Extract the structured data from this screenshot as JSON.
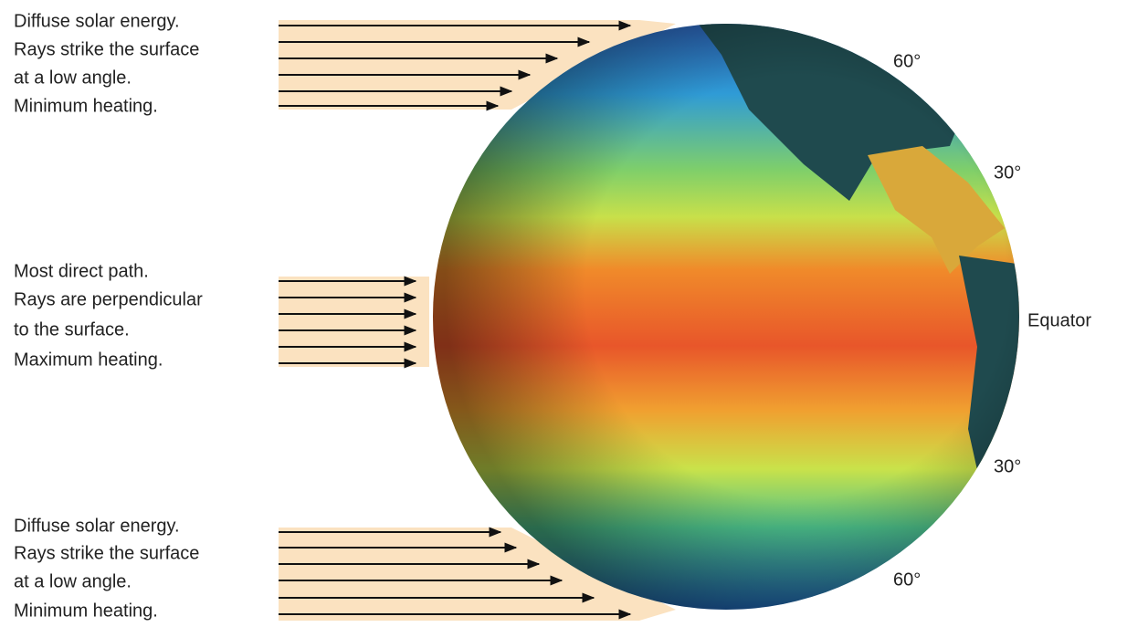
{
  "groups": [
    {
      "lines": [
        "Diffuse solar energy.",
        "Rays strike the surface",
        "at a low angle.",
        "Minimum heating."
      ]
    },
    {
      "lines": [
        "Most direct path.",
        "Rays are perpendicular",
        "to the surface.",
        "Maximum heating."
      ]
    },
    {
      "lines": [
        "Diffuse solar energy.",
        "Rays strike the surface",
        "at a low angle.",
        "Minimum heating."
      ]
    }
  ],
  "latitudes": [
    "60°",
    "30°",
    "Equator",
    "30°",
    "60°"
  ]
}
